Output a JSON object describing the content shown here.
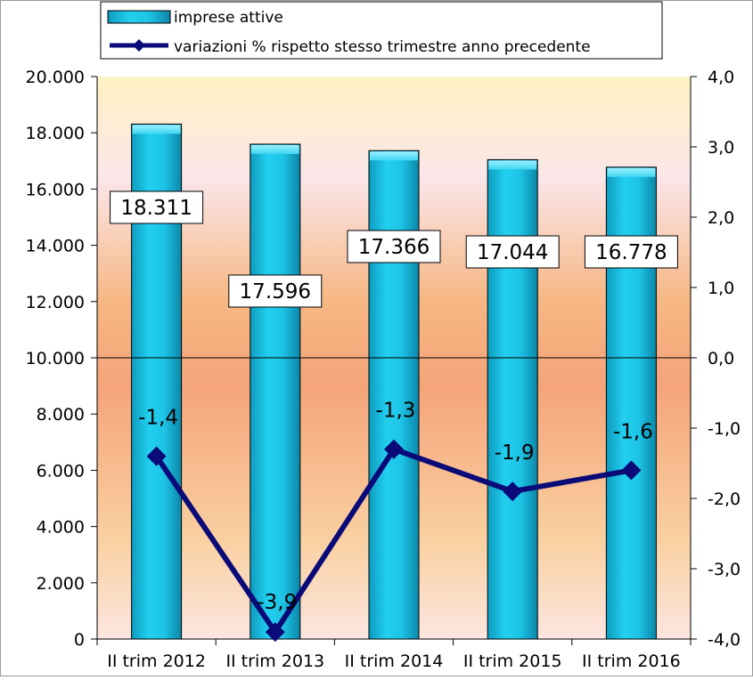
{
  "chart_data": {
    "type": "bar",
    "categories": [
      "II trim 2012",
      "II trim 2013",
      "II trim 2014",
      "II trim 2015",
      "II trim 2016"
    ],
    "series": [
      {
        "name": "imprese attive",
        "type": "bar",
        "axis": "left",
        "values": [
          18311,
          17596,
          17366,
          17044,
          16778
        ],
        "labels": [
          "18.311",
          "17.596",
          "17.366",
          "17.044",
          "16.778"
        ],
        "color": "#1EC8E8"
      },
      {
        "name": "variazioni % rispetto stesso trimestre anno precedente",
        "type": "line",
        "axis": "right",
        "values": [
          -1.4,
          -3.9,
          -1.3,
          -1.9,
          -1.6
        ],
        "labels": [
          "-1,4",
          "-3,9",
          "-1,3",
          "-1,9",
          "-1,6"
        ],
        "color": "#0A0A78"
      }
    ],
    "y_left": {
      "ylim": [
        0,
        20000
      ],
      "ticks": [
        0,
        2000,
        4000,
        6000,
        8000,
        10000,
        12000,
        14000,
        16000,
        18000,
        20000
      ],
      "tick_labels": [
        "0",
        "2.000",
        "4.000",
        "6.000",
        "8.000",
        "10.000",
        "12.000",
        "14.000",
        "16.000",
        "18.000",
        "20.000"
      ]
    },
    "y_right": {
      "ylim": [
        -4,
        4
      ],
      "ticks": [
        -4,
        -3,
        -2,
        -1,
        0,
        1,
        2,
        3,
        4
      ],
      "tick_labels": [
        "-4,0",
        "-3,0",
        "-2,0",
        "-1,0",
        "0,0",
        "1,0",
        "2,0",
        "3,0",
        "4,0"
      ]
    },
    "legend": {
      "position": "top"
    },
    "grid": false
  }
}
